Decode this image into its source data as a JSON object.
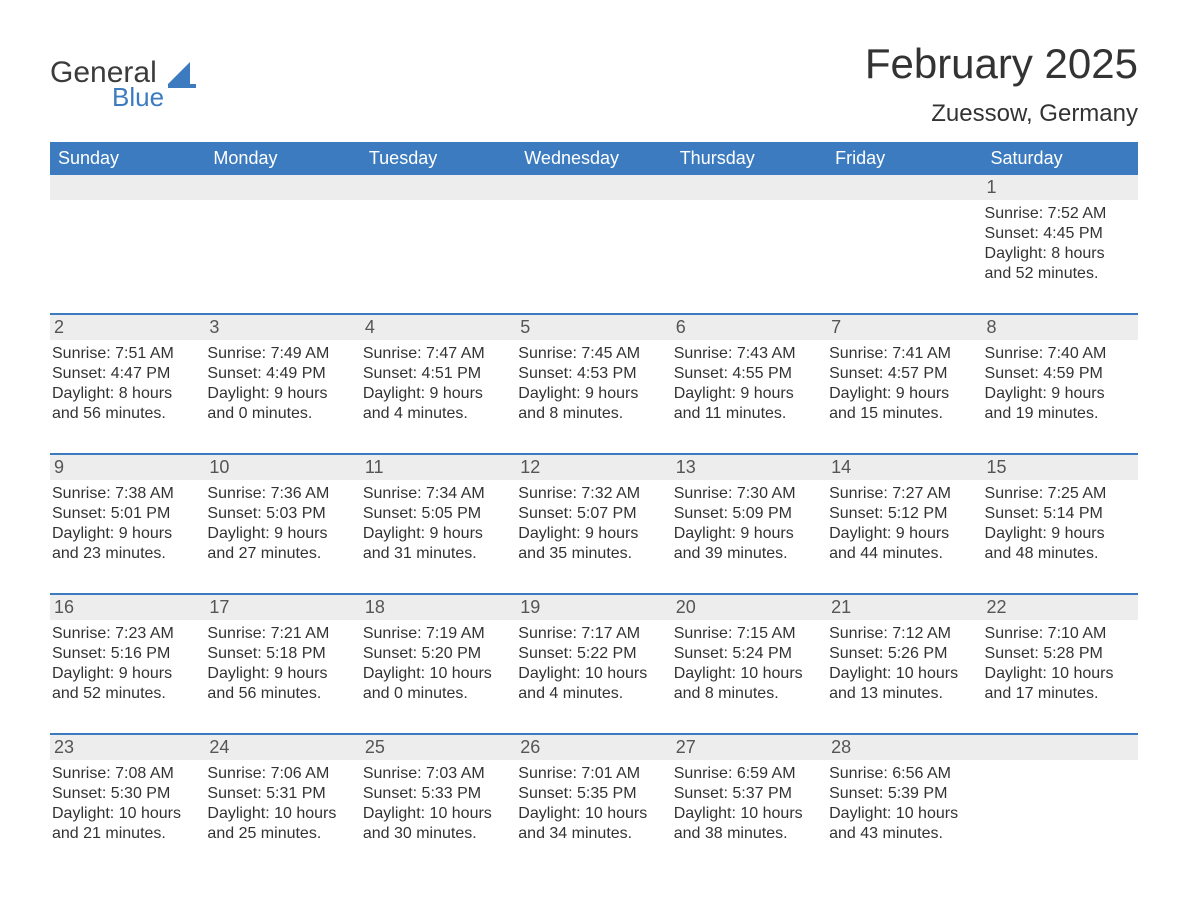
{
  "logo": {
    "word1": "General",
    "word2": "Blue",
    "word1_color": "#3b3b3b",
    "word2_color": "#3c7bbf",
    "icon_color": "#3c7bbf"
  },
  "title": "February 2025",
  "location": "Zuessow, Germany",
  "colors": {
    "header_bg": "#3c7bbf",
    "header_text": "#ffffff",
    "daynum_bg": "#ededed",
    "daynum_text": "#555555",
    "body_text": "#333333",
    "week_divider": "#3c7bbf",
    "page_bg": "#ffffff"
  },
  "typography": {
    "title_fontsize": 42,
    "location_fontsize": 24,
    "dow_fontsize": 18,
    "daynum_fontsize": 18,
    "body_fontsize": 16,
    "font_family": "Arial"
  },
  "days_of_week": [
    "Sunday",
    "Monday",
    "Tuesday",
    "Wednesday",
    "Thursday",
    "Friday",
    "Saturday"
  ],
  "weeks": [
    [
      {
        "empty": true
      },
      {
        "empty": true
      },
      {
        "empty": true
      },
      {
        "empty": true
      },
      {
        "empty": true
      },
      {
        "empty": true
      },
      {
        "n": "1",
        "sunrise": "7:52 AM",
        "sunset": "4:45 PM",
        "daylight_h": "8",
        "daylight_m": "52"
      }
    ],
    [
      {
        "n": "2",
        "sunrise": "7:51 AM",
        "sunset": "4:47 PM",
        "daylight_h": "8",
        "daylight_m": "56"
      },
      {
        "n": "3",
        "sunrise": "7:49 AM",
        "sunset": "4:49 PM",
        "daylight_h": "9",
        "daylight_m": "0"
      },
      {
        "n": "4",
        "sunrise": "7:47 AM",
        "sunset": "4:51 PM",
        "daylight_h": "9",
        "daylight_m": "4"
      },
      {
        "n": "5",
        "sunrise": "7:45 AM",
        "sunset": "4:53 PM",
        "daylight_h": "9",
        "daylight_m": "8"
      },
      {
        "n": "6",
        "sunrise": "7:43 AM",
        "sunset": "4:55 PM",
        "daylight_h": "9",
        "daylight_m": "11"
      },
      {
        "n": "7",
        "sunrise": "7:41 AM",
        "sunset": "4:57 PM",
        "daylight_h": "9",
        "daylight_m": "15"
      },
      {
        "n": "8",
        "sunrise": "7:40 AM",
        "sunset": "4:59 PM",
        "daylight_h": "9",
        "daylight_m": "19"
      }
    ],
    [
      {
        "n": "9",
        "sunrise": "7:38 AM",
        "sunset": "5:01 PM",
        "daylight_h": "9",
        "daylight_m": "23"
      },
      {
        "n": "10",
        "sunrise": "7:36 AM",
        "sunset": "5:03 PM",
        "daylight_h": "9",
        "daylight_m": "27"
      },
      {
        "n": "11",
        "sunrise": "7:34 AM",
        "sunset": "5:05 PM",
        "daylight_h": "9",
        "daylight_m": "31"
      },
      {
        "n": "12",
        "sunrise": "7:32 AM",
        "sunset": "5:07 PM",
        "daylight_h": "9",
        "daylight_m": "35"
      },
      {
        "n": "13",
        "sunrise": "7:30 AM",
        "sunset": "5:09 PM",
        "daylight_h": "9",
        "daylight_m": "39"
      },
      {
        "n": "14",
        "sunrise": "7:27 AM",
        "sunset": "5:12 PM",
        "daylight_h": "9",
        "daylight_m": "44"
      },
      {
        "n": "15",
        "sunrise": "7:25 AM",
        "sunset": "5:14 PM",
        "daylight_h": "9",
        "daylight_m": "48"
      }
    ],
    [
      {
        "n": "16",
        "sunrise": "7:23 AM",
        "sunset": "5:16 PM",
        "daylight_h": "9",
        "daylight_m": "52"
      },
      {
        "n": "17",
        "sunrise": "7:21 AM",
        "sunset": "5:18 PM",
        "daylight_h": "9",
        "daylight_m": "56"
      },
      {
        "n": "18",
        "sunrise": "7:19 AM",
        "sunset": "5:20 PM",
        "daylight_h": "10",
        "daylight_m": "0"
      },
      {
        "n": "19",
        "sunrise": "7:17 AM",
        "sunset": "5:22 PM",
        "daylight_h": "10",
        "daylight_m": "4"
      },
      {
        "n": "20",
        "sunrise": "7:15 AM",
        "sunset": "5:24 PM",
        "daylight_h": "10",
        "daylight_m": "8"
      },
      {
        "n": "21",
        "sunrise": "7:12 AM",
        "sunset": "5:26 PM",
        "daylight_h": "10",
        "daylight_m": "13"
      },
      {
        "n": "22",
        "sunrise": "7:10 AM",
        "sunset": "5:28 PM",
        "daylight_h": "10",
        "daylight_m": "17"
      }
    ],
    [
      {
        "n": "23",
        "sunrise": "7:08 AM",
        "sunset": "5:30 PM",
        "daylight_h": "10",
        "daylight_m": "21"
      },
      {
        "n": "24",
        "sunrise": "7:06 AM",
        "sunset": "5:31 PM",
        "daylight_h": "10",
        "daylight_m": "25"
      },
      {
        "n": "25",
        "sunrise": "7:03 AM",
        "sunset": "5:33 PM",
        "daylight_h": "10",
        "daylight_m": "30"
      },
      {
        "n": "26",
        "sunrise": "7:01 AM",
        "sunset": "5:35 PM",
        "daylight_h": "10",
        "daylight_m": "34"
      },
      {
        "n": "27",
        "sunrise": "6:59 AM",
        "sunset": "5:37 PM",
        "daylight_h": "10",
        "daylight_m": "38"
      },
      {
        "n": "28",
        "sunrise": "6:56 AM",
        "sunset": "5:39 PM",
        "daylight_h": "10",
        "daylight_m": "43"
      },
      {
        "empty": true
      }
    ]
  ],
  "labels": {
    "sunrise": "Sunrise:",
    "sunset": "Sunset:",
    "daylight": "Daylight:",
    "hours": "hours",
    "and": "and",
    "minutes": "minutes."
  }
}
